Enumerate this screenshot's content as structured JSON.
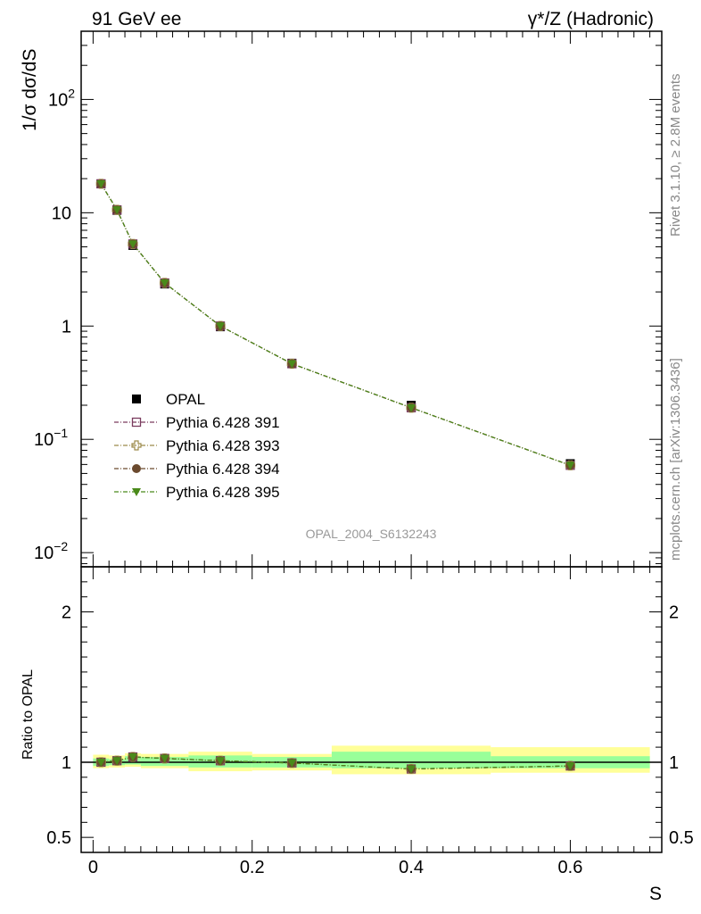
{
  "header": {
    "left": "91 GeV ee",
    "right": "γ*/Z (Hadronic)"
  },
  "side_notes": {
    "rivet": "Rivet 3.1.10, ≥ 2.8M events",
    "mcplots": "mcplots.cern.ch [arXiv:1306.3436]"
  },
  "watermark": "OPAL_2004_S6132243",
  "chart_data": {
    "type": "scatter",
    "x": [
      0.01,
      0.03,
      0.05,
      0.09,
      0.16,
      0.25,
      0.4,
      0.6
    ],
    "xlim": [
      -0.015,
      0.715
    ],
    "xlabel": "S",
    "x_ticks": [
      "0",
      "0.2",
      "0.4",
      "0.6"
    ],
    "main": {
      "ylabel": "1/σ dσ/dS",
      "yscale": "log",
      "ylim": [
        0.0075,
        400
      ],
      "y_ticks": [
        {
          "value": 0.01,
          "base": "10",
          "exp": "−2"
        },
        {
          "value": 0.1,
          "base": "10",
          "exp": "−1"
        },
        {
          "value": 1,
          "base": "1",
          "exp": ""
        },
        {
          "value": 10,
          "base": "10",
          "exp": ""
        },
        {
          "value": 100,
          "base": "10",
          "exp": "2"
        }
      ],
      "reference": {
        "name": "OPAL",
        "values": [
          18.0,
          10.5,
          5.15,
          2.35,
          0.985,
          0.47,
          0.2,
          0.061
        ]
      },
      "series": [
        {
          "name": "Pythia 6.428 391",
          "color": "#7a3b5e",
          "marker": "open-square",
          "values": [
            18.0,
            10.6,
            5.3,
            2.4,
            1.0,
            0.465,
            0.19,
            0.059
          ]
        },
        {
          "name": "Pythia 6.428 393",
          "color": "#9c8a4a",
          "marker": "open-cross",
          "values": [
            18.0,
            10.6,
            5.3,
            2.4,
            1.0,
            0.465,
            0.19,
            0.059
          ]
        },
        {
          "name": "Pythia 6.428 394",
          "color": "#6b4a2e",
          "marker": "filled-circle",
          "values": [
            18.0,
            10.6,
            5.3,
            2.4,
            1.0,
            0.465,
            0.19,
            0.059
          ]
        },
        {
          "name": "Pythia 6.428 395",
          "color": "#4a8a1a",
          "marker": "filled-triangle-down",
          "values": [
            18.0,
            10.6,
            5.3,
            2.4,
            1.0,
            0.465,
            0.19,
            0.059
          ]
        }
      ]
    },
    "ratio": {
      "ylabel": "Ratio to OPAL",
      "ylim": [
        0.4,
        2.3
      ],
      "y_ticks": [
        "0.5",
        "1",
        "2"
      ],
      "bands": [
        {
          "xlo": 0.0,
          "xhi": 0.02,
          "stat": [
            0.975,
            1.025
          ],
          "total": [
            0.96,
            1.05
          ]
        },
        {
          "xlo": 0.02,
          "xhi": 0.04,
          "stat": [
            0.98,
            1.02
          ],
          "total": [
            0.965,
            1.045
          ]
        },
        {
          "xlo": 0.04,
          "xhi": 0.06,
          "stat": [
            0.985,
            1.04
          ],
          "total": [
            0.97,
            1.06
          ]
        },
        {
          "xlo": 0.06,
          "xhi": 0.12,
          "stat": [
            0.975,
            1.035
          ],
          "total": [
            0.96,
            1.055
          ]
        },
        {
          "xlo": 0.12,
          "xhi": 0.2,
          "stat": [
            0.965,
            1.045
          ],
          "total": [
            0.94,
            1.07
          ]
        },
        {
          "xlo": 0.2,
          "xhi": 0.3,
          "stat": [
            0.965,
            1.035
          ],
          "total": [
            0.945,
            1.055
          ]
        },
        {
          "xlo": 0.3,
          "xhi": 0.5,
          "stat": [
            0.96,
            1.07
          ],
          "total": [
            0.92,
            1.11
          ]
        },
        {
          "xlo": 0.5,
          "xhi": 0.7,
          "stat": [
            0.96,
            1.04
          ],
          "total": [
            0.93,
            1.1
          ]
        }
      ],
      "series_values": [
        1.0,
        1.01,
        1.035,
        1.025,
        1.01,
        0.995,
        0.955,
        0.975
      ]
    }
  }
}
